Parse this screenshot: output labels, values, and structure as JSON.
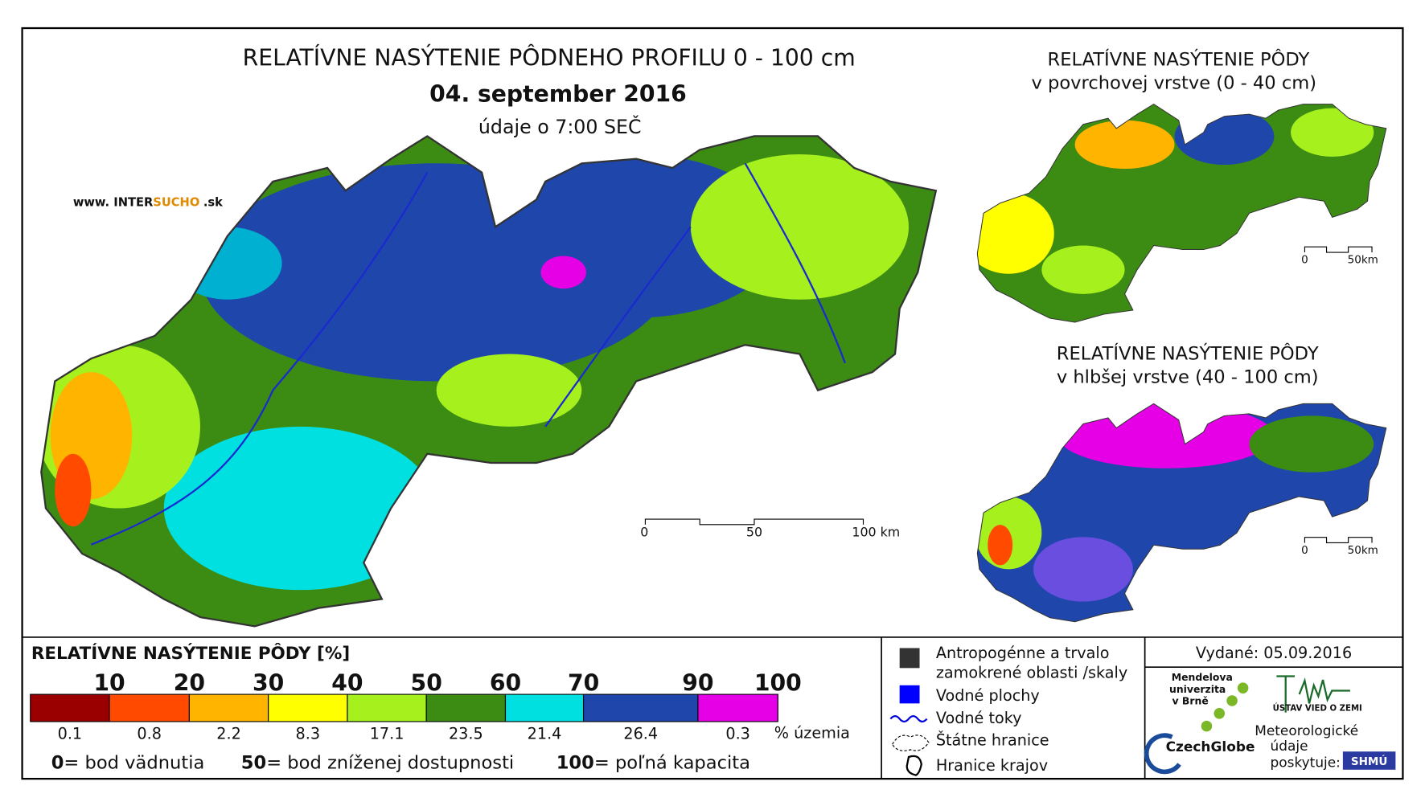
{
  "header": {
    "title": "RELATÍVNE NASÝTENIE PÔDNEHO PROFILU 0 - 100 cm",
    "date": "04. september 2016",
    "time_note": "údaje o 7:00 SEČ",
    "website": [
      "www. INTER",
      "SUCHO",
      ".sk"
    ]
  },
  "main_map": {
    "scale": [
      "0",
      "50",
      "100 km"
    ]
  },
  "insets": [
    {
      "title": "RELATÍVNE NASÝTENIE PÔDY",
      "subtitle": "v povrchovej vrstve (0 - 40 cm)",
      "scale": [
        "0",
        "50km"
      ]
    },
    {
      "title": "RELATÍVNE NASÝTENIE PÔDY",
      "subtitle": "v hlbšej vrstve (40 - 100 cm)",
      "scale": [
        "0",
        "50km"
      ]
    }
  ],
  "legend": {
    "title": "RELATÍVNE NASÝTENIE PÔDY [%]",
    "unit": "% územia",
    "classes": [
      {
        "upper": "10",
        "color": "#9b0000",
        "share": "0.1"
      },
      {
        "upper": "20",
        "color": "#ff4a00",
        "share": "0.8"
      },
      {
        "upper": "30",
        "color": "#ffb400",
        "share": "2.2"
      },
      {
        "upper": "40",
        "color": "#ffff00",
        "share": "8.3"
      },
      {
        "upper": "50",
        "color": "#a6f01e",
        "share": "17.1"
      },
      {
        "upper": "60",
        "color": "#3c8c14",
        "share": "23.5"
      },
      {
        "upper": "70",
        "color": "#00e0e0",
        "share": "21.4"
      },
      {
        "upper": "90",
        "color": "#1f46aa",
        "share": "26.4"
      },
      {
        "upper": "100",
        "color": "#e600e6",
        "share": "0.3"
      }
    ],
    "definitions": [
      {
        "value": "0",
        "text": "= bod vädnutia"
      },
      {
        "value": "50",
        "text": "= bod zníženej dostupnosti"
      },
      {
        "value": "100",
        "text": "= poľná kapacita"
      }
    ]
  },
  "symbols": {
    "anthropogenic": [
      "Antropogénne a trvalo",
      "zamokrené oblasti /skaly"
    ],
    "water_bodies": "Vodné plochy",
    "rivers": "Vodné toky",
    "state_border": "Štátne hranice",
    "regions": "Hranice krajov"
  },
  "credits": {
    "issued": "Vydané: 05.09.2016",
    "mendel": [
      "Mendelova",
      "univerzita",
      "v Brně"
    ],
    "czechglobe": "CzechGlobe",
    "ustav": "ÚSTAV VIED O ZEMI",
    "meteo": [
      "Meteorologické",
      "údaje",
      "poskytuje:"
    ],
    "shmu": "SHMÚ"
  }
}
